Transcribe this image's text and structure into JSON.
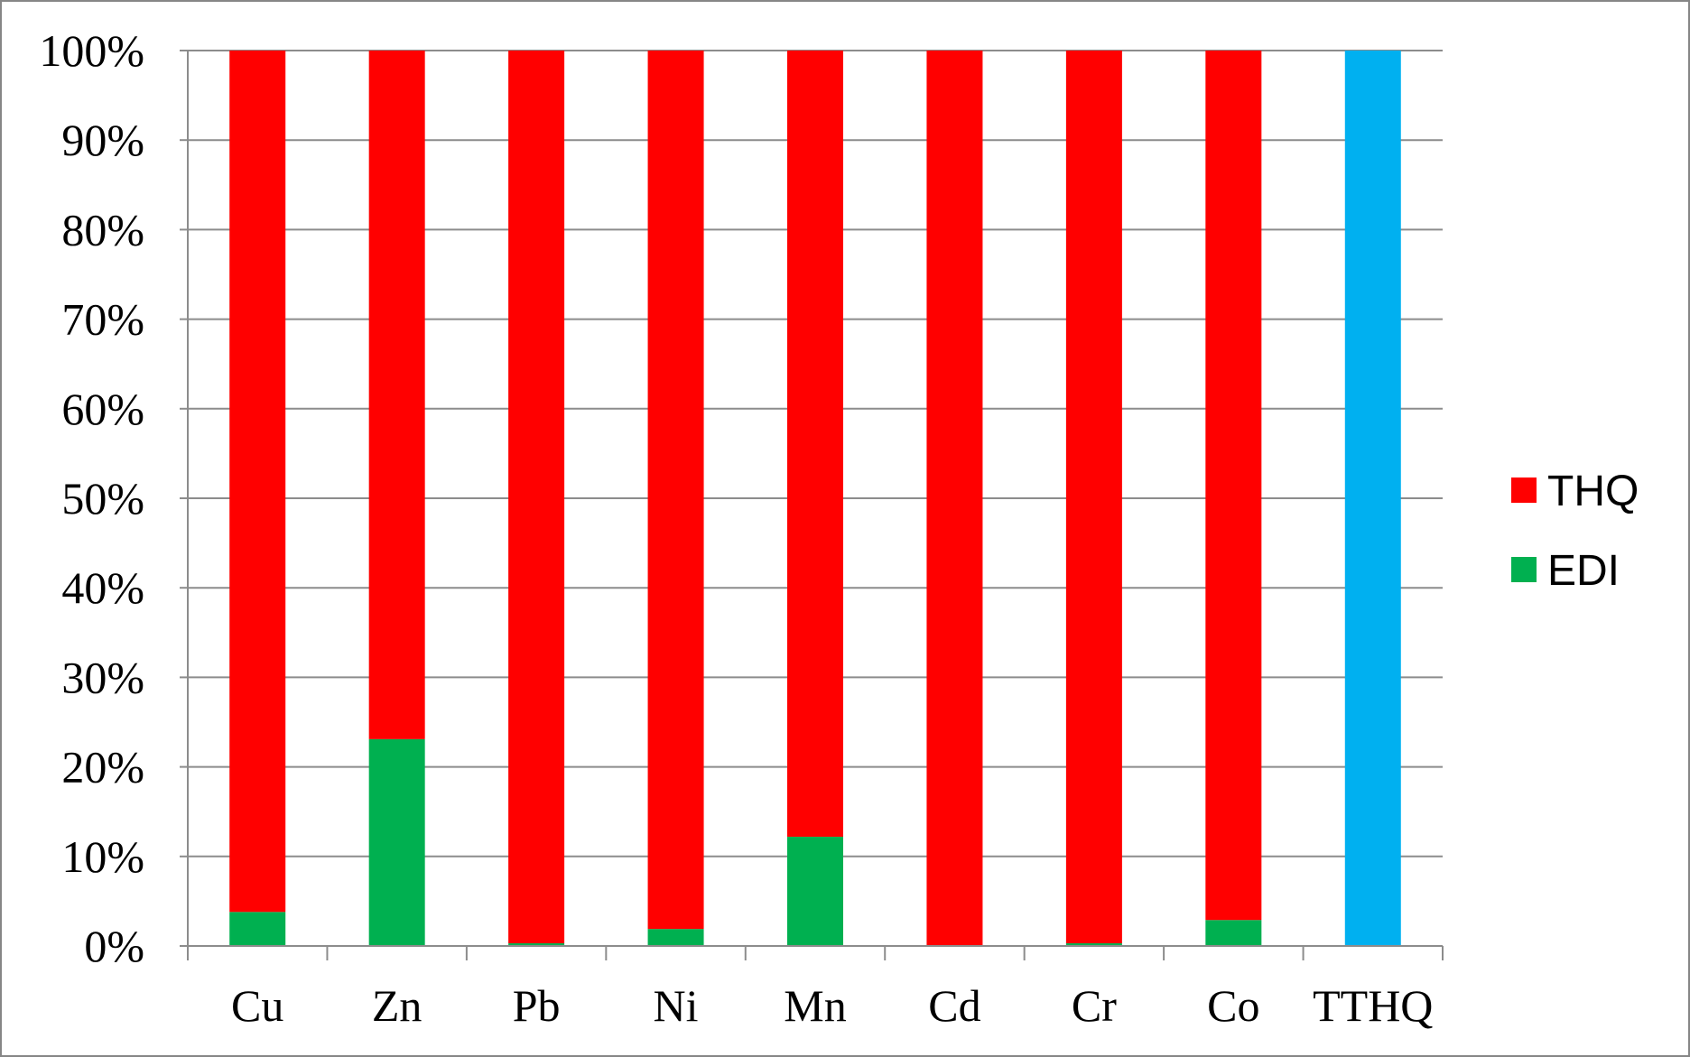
{
  "chart_data": {
    "type": "bar",
    "stacked": true,
    "normalized": true,
    "categories": [
      "Cu",
      "Zn",
      "Pb",
      "Ni",
      "Mn",
      "Cd",
      "Cr",
      "Co",
      "TTHQ"
    ],
    "series": [
      {
        "name": "EDI",
        "color": "#00b050",
        "values": [
          3.8,
          23.1,
          0.3,
          1.9,
          12.2,
          0.1,
          0.3,
          2.9,
          0
        ]
      },
      {
        "name": "THQ",
        "color": "#ff0000",
        "values": [
          96.2,
          76.9,
          99.7,
          98.1,
          87.8,
          99.9,
          99.7,
          97.1,
          0
        ]
      },
      {
        "name": "",
        "color": "#00b0f0",
        "values": [
          0,
          0,
          0,
          0,
          0,
          0,
          0,
          0,
          100
        ]
      }
    ],
    "y_ticks": [
      "0%",
      "10%",
      "20%",
      "30%",
      "40%",
      "50%",
      "60%",
      "70%",
      "80%",
      "90%",
      "100%"
    ],
    "ylim": [
      0,
      100
    ],
    "grid": true,
    "legend": {
      "position": "right",
      "entries": [
        "THQ",
        "EDI"
      ]
    }
  }
}
